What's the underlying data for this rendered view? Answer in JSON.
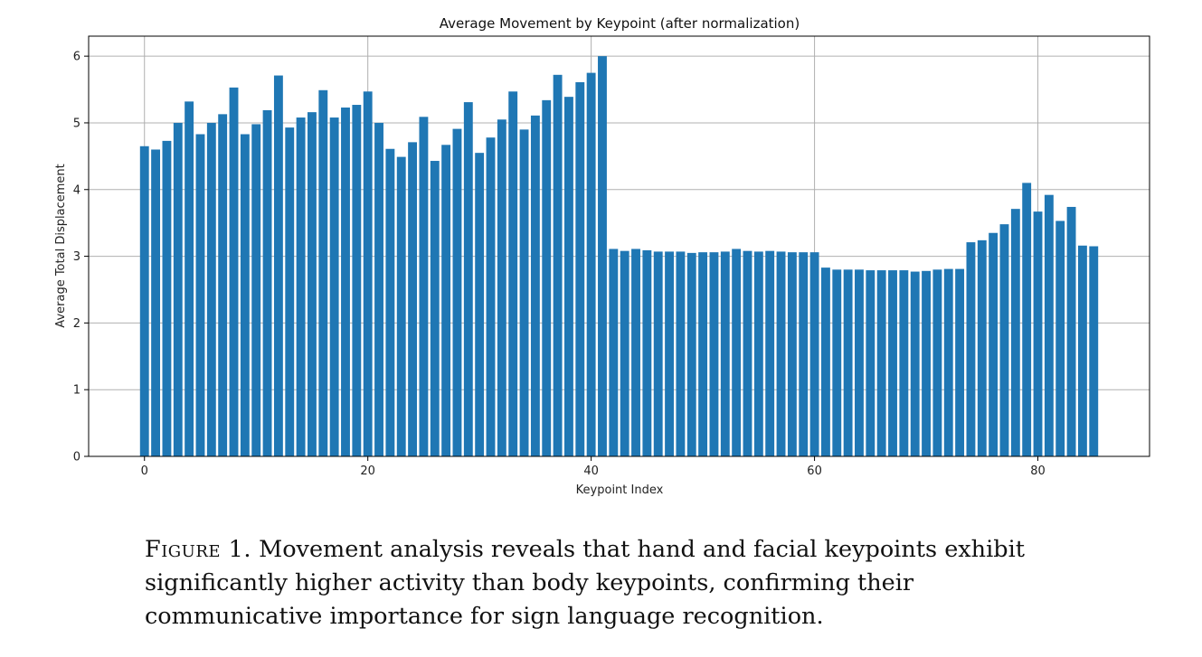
{
  "chart_data": {
    "type": "bar",
    "title": "Average Movement by Keypoint (after normalization)",
    "xlabel": "Keypoint Index",
    "ylabel": "Average Total Displacement",
    "xlim": [
      -5,
      90
    ],
    "ylim": [
      0,
      6.3
    ],
    "xticks": [
      0,
      20,
      40,
      60,
      80
    ],
    "yticks": [
      0,
      1,
      2,
      3,
      4,
      5,
      6
    ],
    "grid": true,
    "color": "#1f77b4",
    "x": [
      0,
      1,
      2,
      3,
      4,
      5,
      6,
      7,
      8,
      9,
      10,
      11,
      12,
      13,
      14,
      15,
      16,
      17,
      18,
      19,
      20,
      21,
      22,
      23,
      24,
      25,
      26,
      27,
      28,
      29,
      30,
      31,
      32,
      33,
      34,
      35,
      36,
      37,
      38,
      39,
      40,
      41,
      42,
      43,
      44,
      45,
      46,
      47,
      48,
      49,
      50,
      51,
      52,
      53,
      54,
      55,
      56,
      57,
      58,
      59,
      60,
      61,
      62,
      63,
      64,
      65,
      66,
      67,
      68,
      69,
      70,
      71,
      72,
      73,
      74,
      75,
      76,
      77,
      78,
      79,
      80,
      81,
      82,
      83,
      84,
      85
    ],
    "values": [
      4.65,
      4.6,
      4.73,
      5.0,
      5.32,
      4.83,
      5.0,
      5.13,
      5.53,
      4.83,
      4.98,
      5.19,
      5.71,
      4.93,
      5.08,
      5.16,
      5.49,
      5.08,
      5.23,
      5.27,
      5.47,
      5.0,
      4.61,
      4.49,
      4.71,
      5.09,
      4.43,
      4.67,
      4.91,
      5.31,
      4.55,
      4.78,
      5.05,
      5.47,
      4.9,
      5.11,
      5.34,
      5.72,
      5.39,
      5.61,
      5.75,
      6.0,
      3.11,
      3.08,
      3.11,
      3.09,
      3.07,
      3.07,
      3.07,
      3.05,
      3.06,
      3.06,
      3.07,
      3.11,
      3.08,
      3.07,
      3.08,
      3.07,
      3.06,
      3.06,
      3.06,
      2.83,
      2.8,
      2.8,
      2.8,
      2.79,
      2.79,
      2.79,
      2.79,
      2.77,
      2.78,
      2.8,
      2.81,
      2.81,
      3.21,
      3.24,
      3.35,
      3.48,
      3.71,
      4.1,
      3.67,
      3.92,
      3.53,
      3.74,
      3.16,
      3.15
    ]
  },
  "caption": {
    "label": "Figure 1.",
    "text": "Movement analysis reveals that hand and facial keypoints exhibit significantly higher activity than body keypoints, confirming their communicative importance for sign language recognition."
  }
}
